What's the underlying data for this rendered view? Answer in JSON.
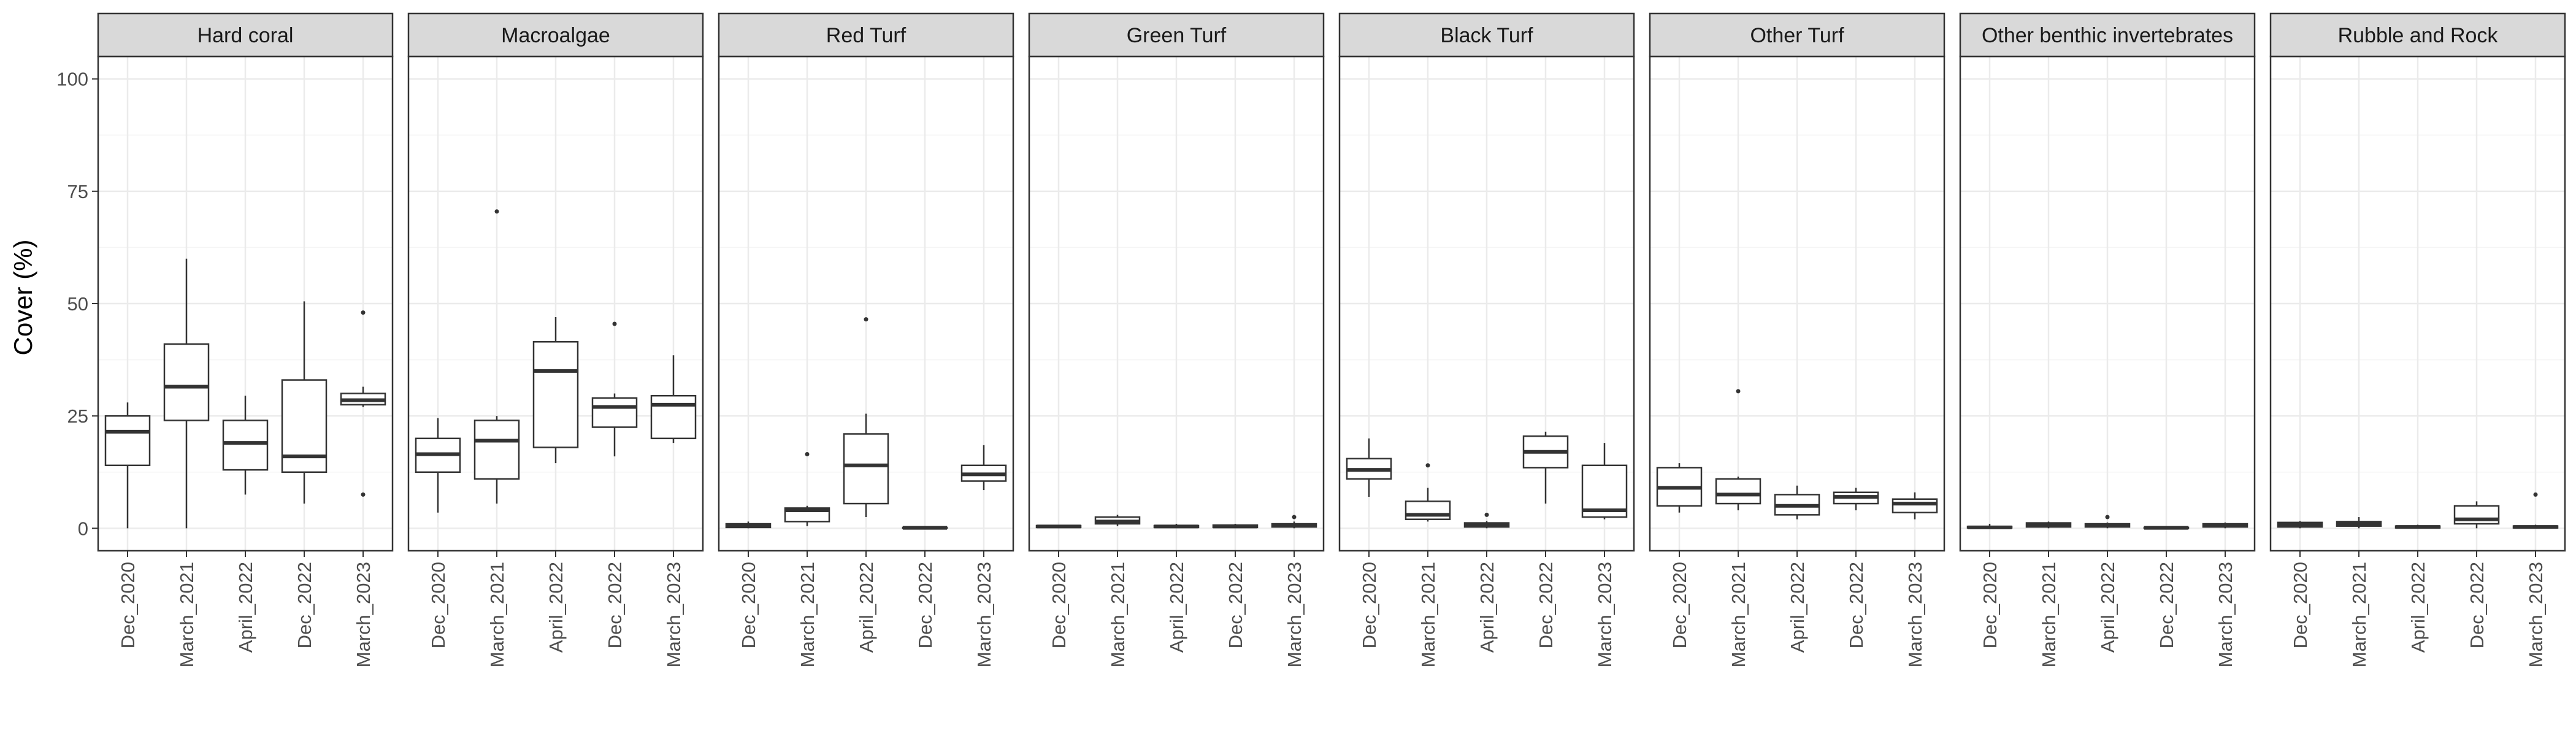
{
  "chart_data": {
    "type": "boxplot",
    "ylabel": "Cover (%)",
    "xlabel": "",
    "ylim": [
      0,
      100
    ],
    "y_ticks": [
      0,
      25,
      50,
      75,
      100
    ],
    "grid": true,
    "categories": [
      "Dec_2020",
      "March_2021",
      "April_2022",
      "Dec_2022",
      "March_2023"
    ],
    "colors": {
      "panel_border": "#333333",
      "strip_fill": "#d9d9d9",
      "grid_major": "#ebebeb",
      "grid_minor": "#f5f5f5",
      "box": "#333333"
    },
    "panels": [
      {
        "label": "Hard coral",
        "boxes": [
          {
            "min": 0,
            "q1": 14,
            "median": 21.5,
            "q3": 25,
            "max": 28,
            "outliers": []
          },
          {
            "min": 0,
            "q1": 24,
            "median": 31.5,
            "q3": 41,
            "max": 60,
            "outliers": []
          },
          {
            "min": 7.5,
            "q1": 13,
            "median": 19,
            "q3": 24,
            "max": 29.5,
            "outliers": []
          },
          {
            "min": 5.5,
            "q1": 12.5,
            "median": 16,
            "q3": 33,
            "max": 50.5,
            "outliers": []
          },
          {
            "min": 27,
            "q1": 27.5,
            "median": 28.5,
            "q3": 30,
            "max": 31.5,
            "outliers": [
              48,
              7.5
            ]
          }
        ]
      },
      {
        "label": "Macroalgae",
        "boxes": [
          {
            "min": 3.5,
            "q1": 12.5,
            "median": 16.5,
            "q3": 20,
            "max": 24.5,
            "outliers": []
          },
          {
            "min": 5.5,
            "q1": 11,
            "median": 19.5,
            "q3": 24,
            "max": 25,
            "outliers": [
              70.5
            ]
          },
          {
            "min": 14.5,
            "q1": 18,
            "median": 35,
            "q3": 41.5,
            "max": 47,
            "outliers": []
          },
          {
            "min": 16,
            "q1": 22.5,
            "median": 27,
            "q3": 29,
            "max": 30,
            "outliers": [
              45.5
            ]
          },
          {
            "min": 19,
            "q1": 20,
            "median": 27.5,
            "q3": 29.5,
            "max": 38.5,
            "outliers": []
          }
        ]
      },
      {
        "label": "Red Turf",
        "boxes": [
          {
            "min": 0,
            "q1": 0.2,
            "median": 0.5,
            "q3": 1,
            "max": 1.5,
            "outliers": []
          },
          {
            "min": 0.5,
            "q1": 1.5,
            "median": 4,
            "q3": 4.5,
            "max": 5,
            "outliers": [
              16.5
            ]
          },
          {
            "min": 2.5,
            "q1": 5.5,
            "median": 14,
            "q3": 21,
            "max": 25.5,
            "outliers": [
              46.5
            ]
          },
          {
            "min": 0,
            "q1": 0,
            "median": 0.1,
            "q3": 0.2,
            "max": 0.3,
            "outliers": []
          },
          {
            "min": 8.5,
            "q1": 10.5,
            "median": 12,
            "q3": 14,
            "max": 18.5,
            "outliers": []
          }
        ]
      },
      {
        "label": "Green Turf",
        "boxes": [
          {
            "min": 0,
            "q1": 0.2,
            "median": 0.4,
            "q3": 0.6,
            "max": 0.8,
            "outliers": []
          },
          {
            "min": 0.5,
            "q1": 1,
            "median": 1.5,
            "q3": 2.5,
            "max": 3,
            "outliers": []
          },
          {
            "min": 0,
            "q1": 0.2,
            "median": 0.4,
            "q3": 0.6,
            "max": 1,
            "outliers": []
          },
          {
            "min": 0,
            "q1": 0.2,
            "median": 0.4,
            "q3": 0.7,
            "max": 1,
            "outliers": []
          },
          {
            "min": 0,
            "q1": 0.3,
            "median": 0.6,
            "q3": 1,
            "max": 1.5,
            "outliers": [
              2.5
            ]
          }
        ]
      },
      {
        "label": "Black Turf",
        "boxes": [
          {
            "min": 7,
            "q1": 11,
            "median": 13,
            "q3": 15.5,
            "max": 20,
            "outliers": []
          },
          {
            "min": 1.5,
            "q1": 2,
            "median": 3,
            "q3": 6,
            "max": 9,
            "outliers": [
              14
            ]
          },
          {
            "min": 0,
            "q1": 0.3,
            "median": 0.8,
            "q3": 1.2,
            "max": 1.6,
            "outliers": [
              3
            ]
          },
          {
            "min": 5.5,
            "q1": 13.5,
            "median": 17,
            "q3": 20.5,
            "max": 21.5,
            "outliers": []
          },
          {
            "min": 2,
            "q1": 2.5,
            "median": 4,
            "q3": 14,
            "max": 19,
            "outliers": []
          }
        ]
      },
      {
        "label": "Other Turf",
        "boxes": [
          {
            "min": 3.5,
            "q1": 5,
            "median": 9,
            "q3": 13.5,
            "max": 14.5,
            "outliers": []
          },
          {
            "min": 4,
            "q1": 5.5,
            "median": 7.5,
            "q3": 11,
            "max": 11.5,
            "outliers": [
              30.5
            ]
          },
          {
            "min": 2,
            "q1": 3,
            "median": 5,
            "q3": 7.5,
            "max": 9.5,
            "outliers": []
          },
          {
            "min": 4,
            "q1": 5.5,
            "median": 7,
            "q3": 8,
            "max": 9,
            "outliers": []
          },
          {
            "min": 2,
            "q1": 3.5,
            "median": 5.5,
            "q3": 6.5,
            "max": 8,
            "outliers": []
          }
        ]
      },
      {
        "label": "Other benthic invertebrates",
        "boxes": [
          {
            "min": 0,
            "q1": 0.1,
            "median": 0.2,
            "q3": 0.4,
            "max": 1,
            "outliers": []
          },
          {
            "min": 0,
            "q1": 0.3,
            "median": 0.7,
            "q3": 1.2,
            "max": 1.5,
            "outliers": []
          },
          {
            "min": 0,
            "q1": 0.3,
            "median": 0.6,
            "q3": 1,
            "max": 1.3,
            "outliers": [
              2.5
            ]
          },
          {
            "min": 0,
            "q1": 0,
            "median": 0.1,
            "q3": 0.2,
            "max": 0.3,
            "outliers": []
          },
          {
            "min": 0,
            "q1": 0.3,
            "median": 0.6,
            "q3": 1,
            "max": 1.3,
            "outliers": []
          }
        ]
      },
      {
        "label": "Rubble and Rock",
        "boxes": [
          {
            "min": 0,
            "q1": 0.3,
            "median": 0.8,
            "q3": 1.3,
            "max": 1.6,
            "outliers": []
          },
          {
            "min": 0,
            "q1": 0.5,
            "median": 1,
            "q3": 1.5,
            "max": 2.5,
            "outliers": []
          },
          {
            "min": 0,
            "q1": 0.1,
            "median": 0.3,
            "q3": 0.5,
            "max": 0.8,
            "outliers": []
          },
          {
            "min": 0,
            "q1": 1,
            "median": 2,
            "q3": 5,
            "max": 6,
            "outliers": []
          },
          {
            "min": 0,
            "q1": 0.1,
            "median": 0.3,
            "q3": 0.5,
            "max": 0.8,
            "outliers": [
              7.5
            ]
          }
        ]
      }
    ]
  }
}
